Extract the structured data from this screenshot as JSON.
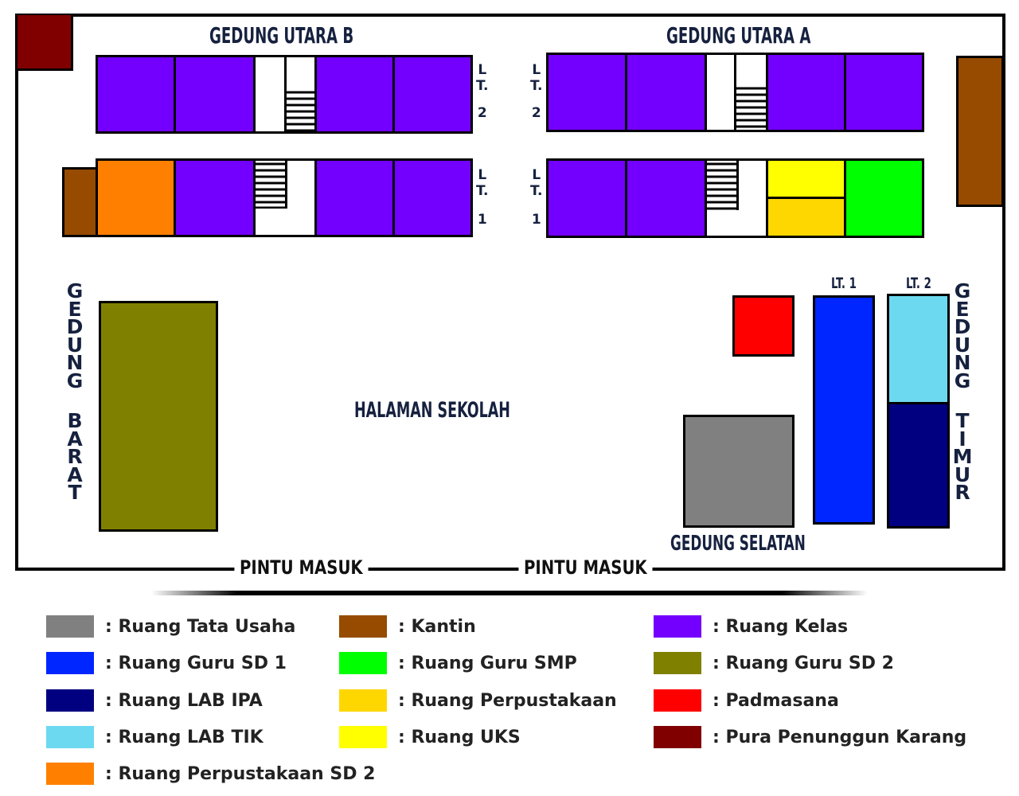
{
  "colors": {
    "kelas": "#7300ff",
    "kantin": "#964b00",
    "pura": "#800000",
    "perpus_sd2": "#ff8000",
    "uks": "#ffff00",
    "perpustakaan": "#ffd700",
    "guru_smp": "#00ff00",
    "guru_sd2": "#808000",
    "padmasana": "#ff0000",
    "tata_usaha": "#808080",
    "guru_sd1": "#0026ff",
    "lab_ipa": "#000080",
    "lab_tik": "#6cd9f0"
  },
  "map": {
    "gedung_utara_b": "GEDUNG UTARA B",
    "gedung_utara_a": "GEDUNG UTARA A",
    "floor_lt": "LT.",
    "floor_l": "L",
    "floor_t": "T.",
    "floor_2": "2",
    "floor_1": "1",
    "gedung_barat_1": "GEDUNG",
    "gedung_barat_2": "BARAT",
    "gedung_timur_1": "GEDUNG",
    "gedung_timur_2": "TIMUR",
    "lt1": "LT. 1",
    "lt2": "LT. 2",
    "halaman": "HALAMAN SEKOLAH",
    "gedung_selatan": "GEDUNG SELATAN",
    "pintu_masuk_1": "PINTU MASUK",
    "pintu_masuk_2": "PINTU MASUK"
  },
  "legend": [
    {
      "label": ": Ruang Tata Usaha",
      "color": "#808080"
    },
    {
      "label": ": Kantin",
      "color": "#964b00"
    },
    {
      "label": ": Ruang Kelas",
      "color": "#7300ff"
    },
    {
      "label": ": Ruang Guru SD 1",
      "color": "#0026ff"
    },
    {
      "label": ": Ruang Guru SMP",
      "color": "#00ff00"
    },
    {
      "label": ": Ruang Guru SD 2",
      "color": "#808000"
    },
    {
      "label": ": Ruang LAB IPA",
      "color": "#000080"
    },
    {
      "label": ": Ruang Perpustakaan",
      "color": "#ffd700"
    },
    {
      "label": ": Padmasana",
      "color": "#ff0000"
    },
    {
      "label": ": Ruang LAB TIK",
      "color": "#6cd9f0"
    },
    {
      "label": ": Ruang UKS",
      "color": "#ffff00"
    },
    {
      "label": ": Pura Penunggun Karang",
      "color": "#800000"
    },
    {
      "label": ": Ruang Perpustakaan SD 2",
      "color": "#ff8000"
    }
  ]
}
